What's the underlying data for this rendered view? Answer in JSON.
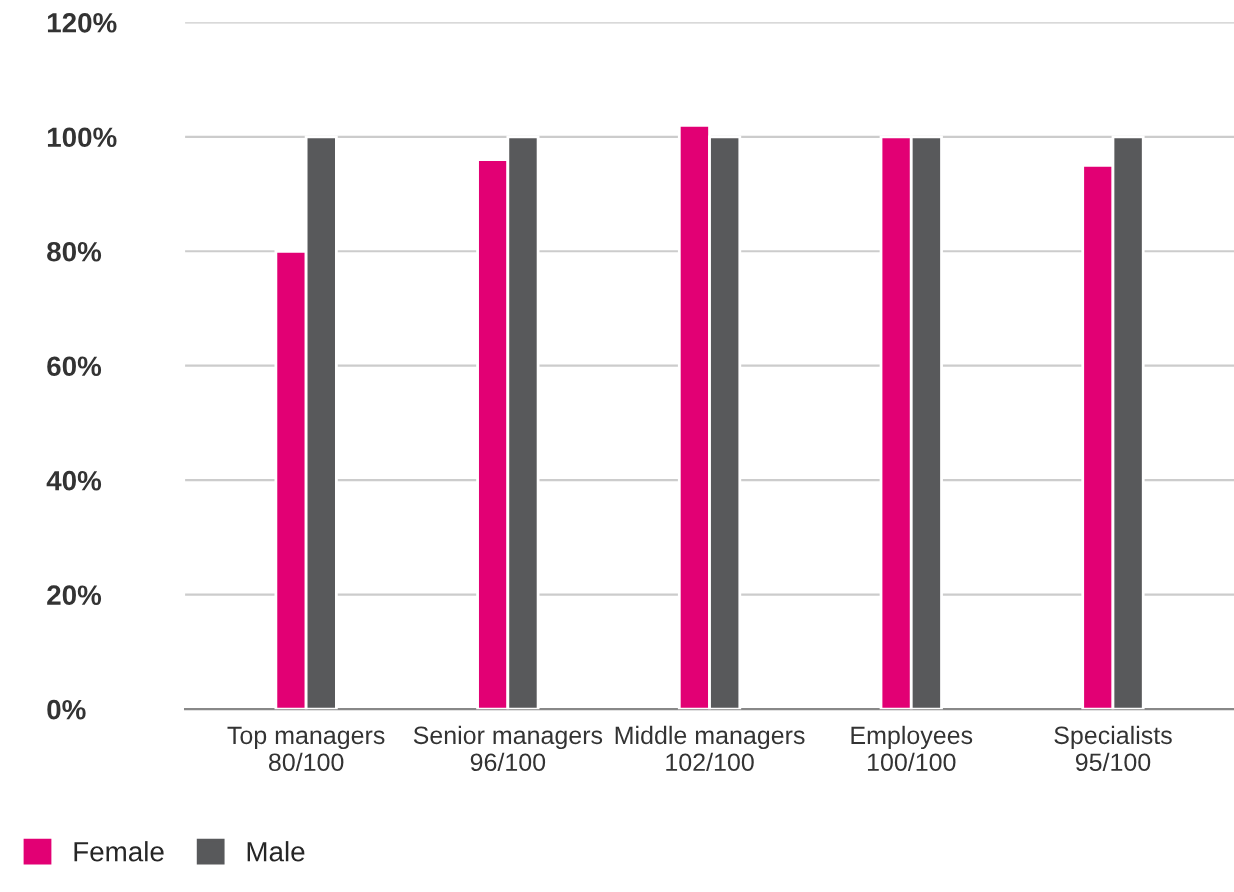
{
  "chart_data": {
    "type": "bar",
    "categories": [
      "Top managers\n80/100",
      "Senior managers\n96/100",
      "Middle managers\n102/100",
      "Employees\n100/100",
      "Specialists\n95/100"
    ],
    "series": [
      {
        "name": "Female",
        "color": "#e20074",
        "values": [
          80,
          96,
          102,
          100,
          95
        ]
      },
      {
        "name": "Male",
        "color": "#58595b",
        "values": [
          100,
          100,
          100,
          100,
          100
        ]
      }
    ],
    "ylim": [
      0,
      120
    ],
    "yticks": [
      {
        "value": 0,
        "label": "0%"
      },
      {
        "value": 20,
        "label": "20%"
      },
      {
        "value": 40,
        "label": "40%"
      },
      {
        "value": 60,
        "label": "60%"
      },
      {
        "value": 80,
        "label": "80%"
      },
      {
        "value": 100,
        "label": "100%"
      },
      {
        "value": 120,
        "label": "120%"
      }
    ],
    "grid": "y",
    "legend": "bottom left"
  }
}
